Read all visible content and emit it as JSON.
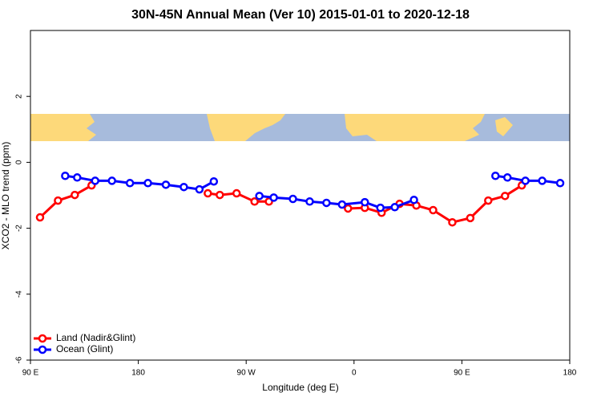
{
  "chart_data": {
    "type": "line",
    "title": "30N-45N Annual Mean (Ver 10)   2015-01-01 to 2020-12-18",
    "x_label": "Longitude (deg E)",
    "y_label": "XCO2 - MLO trend (ppm)",
    "xlim": [
      90,
      540
    ],
    "ylim": [
      -6,
      4
    ],
    "xticks": [
      {
        "value": 90,
        "label": "90 E"
      },
      180,
      {
        "value": 270,
        "label": "90 W"
      },
      {
        "value": 360,
        "label": "0"
      },
      {
        "value": 450,
        "label": "90 E"
      },
      {
        "value": 540,
        "label": "180"
      }
    ],
    "yticks": [
      -6,
      -4,
      -2,
      0,
      2
    ],
    "grid": false,
    "legend": "bottom-left",
    "series": [
      {
        "name": "Land (Nadir&Glint)",
        "color": "#ff0000",
        "x": [
          98,
          113,
          127,
          141,
          190,
          238,
          248,
          262,
          277,
          289,
          320,
          355,
          369,
          383,
          398,
          412,
          426,
          442,
          457,
          472,
          486,
          500
        ],
        "values": [
          -1.67,
          -1.16,
          -0.99,
          -0.7,
          null,
          -0.94,
          -0.99,
          -0.94,
          -1.19,
          -1.19,
          null,
          -1.4,
          -1.38,
          -1.53,
          -1.26,
          -1.31,
          -1.45,
          -1.82,
          -1.69,
          -1.16,
          -1.02,
          -0.7
        ]
      },
      {
        "name": "Ocean (Glint)",
        "color": "#0000ff",
        "x": [
          119,
          129,
          144,
          158,
          173,
          188,
          203,
          218,
          231,
          243,
          262,
          281,
          293,
          309,
          323,
          337,
          350,
          369,
          382,
          394,
          410,
          445,
          478,
          488,
          503,
          517,
          532
        ],
        "values": [
          -0.41,
          -0.46,
          -0.56,
          -0.56,
          -0.63,
          -0.63,
          -0.68,
          -0.75,
          -0.82,
          -0.58,
          null,
          -1.02,
          -1.07,
          -1.11,
          -1.19,
          -1.23,
          -1.28,
          -1.21,
          -1.38,
          -1.36,
          -1.14,
          null,
          -0.41,
          -0.46,
          -0.56,
          -0.56,
          -0.63
        ]
      }
    ]
  }
}
